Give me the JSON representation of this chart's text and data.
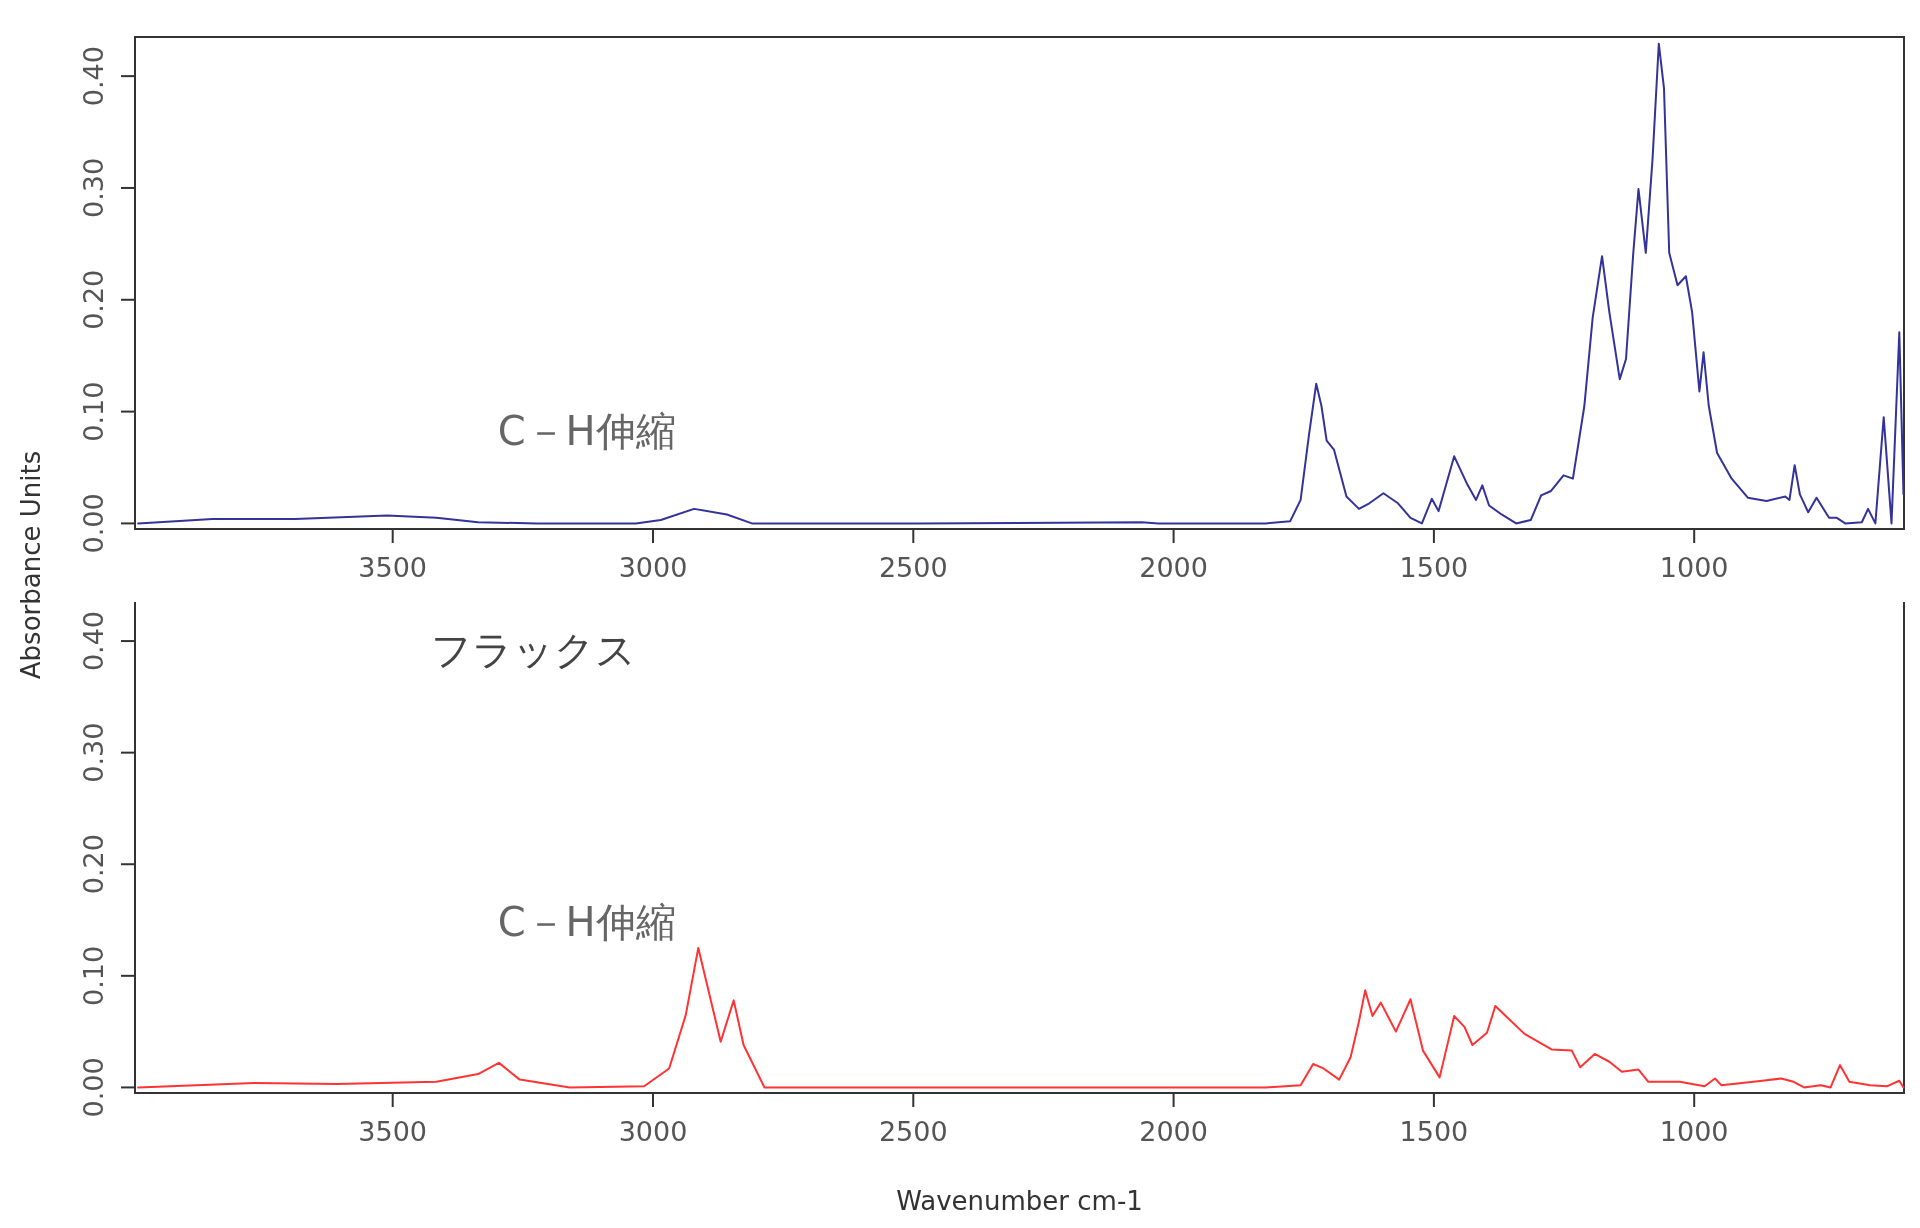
{
  "chart_data": [
    {
      "type": "line",
      "ylabel": "Absorbance Units",
      "annotations": [
        "C－H伸縮"
      ],
      "xlim": [
        3995,
        597
      ],
      "xticks": [
        3500,
        3000,
        2500,
        2000,
        1500,
        1000
      ],
      "ylim": [
        -0.005,
        0.435
      ],
      "yticks": [
        {
          "value": 0,
          "label": "0.00"
        },
        {
          "value": 0.1,
          "label": "0.10"
        },
        {
          "value": 0.2,
          "label": "0.20"
        },
        {
          "value": 0.3,
          "label": "0.30"
        },
        {
          "value": 0.4,
          "label": "0.40"
        }
      ],
      "series": [
        {
          "color": "#33339a",
          "x": [
            3989,
            3846,
            3687,
            3511,
            3416,
            3336,
            3224,
            3033,
            2985,
            2921,
            2858,
            2810,
            2491,
            2061,
            2029,
            1823,
            1776,
            1756,
            1740,
            1726,
            1716,
            1706,
            1692,
            1668,
            1644,
            1624,
            1597,
            1569,
            1545,
            1523,
            1504,
            1491,
            1461,
            1437,
            1419,
            1407,
            1394,
            1370,
            1342,
            1314,
            1294,
            1275,
            1251,
            1233,
            1211,
            1195,
            1177,
            1163,
            1143,
            1131,
            1117,
            1107,
            1093,
            1080,
            1068,
            1058,
            1048,
            1032,
            1016,
            1004,
            990,
            982,
            972,
            956,
            928,
            897,
            861,
            825,
            817,
            807,
            797,
            781,
            765,
            741,
            726,
            710,
            678,
            666,
            652,
            636,
            621,
            606,
            598
          ],
          "values": [
            0.0,
            0.004,
            0.004,
            0.007,
            0.005,
            0.001,
            0.0,
            0.0,
            0.003,
            0.013,
            0.008,
            0.0,
            0.0,
            0.001,
            0.0,
            0.0,
            0.002,
            0.021,
            0.079,
            0.125,
            0.105,
            0.074,
            0.066,
            0.024,
            0.013,
            0.018,
            0.027,
            0.018,
            0.005,
            0.0,
            0.022,
            0.011,
            0.06,
            0.036,
            0.021,
            0.034,
            0.016,
            0.008,
            0.0,
            0.003,
            0.025,
            0.029,
            0.043,
            0.04,
            0.105,
            0.184,
            0.239,
            0.189,
            0.129,
            0.147,
            0.242,
            0.299,
            0.242,
            0.326,
            0.429,
            0.389,
            0.242,
            0.213,
            0.221,
            0.189,
            0.118,
            0.153,
            0.105,
            0.063,
            0.04,
            0.023,
            0.02,
            0.024,
            0.021,
            0.052,
            0.026,
            0.01,
            0.023,
            0.005,
            0.005,
            0.0,
            0.001,
            0.013,
            0.0,
            0.095,
            0.0,
            0.171,
            0.026
          ]
        }
      ]
    },
    {
      "type": "line",
      "title": "フラックス",
      "xlabel": "Wavenumber cm-1",
      "annotations": [
        "C－H伸縮"
      ],
      "xlim": [
        3995,
        597
      ],
      "xticks": [
        3500,
        3000,
        2500,
        2000,
        1500,
        1000
      ],
      "ylim": [
        -0.005,
        0.435
      ],
      "yticks": [
        {
          "value": 0,
          "label": "0.00"
        },
        {
          "value": 0.1,
          "label": "0.10"
        },
        {
          "value": 0.2,
          "label": "0.20"
        },
        {
          "value": 0.3,
          "label": "0.30"
        },
        {
          "value": 0.4,
          "label": "0.40"
        }
      ],
      "series": [
        {
          "color": "#ff3333",
          "x": [
            3989,
            3766,
            3607,
            3416,
            3336,
            3296,
            3256,
            3160,
            3017,
            2969,
            2937,
            2913,
            2893,
            2870,
            2845,
            2826,
            2786,
            2029,
            1823,
            1756,
            1732,
            1712,
            1682,
            1660,
            1644,
            1632,
            1618,
            1602,
            1573,
            1545,
            1521,
            1489,
            1461,
            1441,
            1426,
            1398,
            1382,
            1362,
            1326,
            1274,
            1235,
            1219,
            1191,
            1163,
            1139,
            1107,
            1088,
            1028,
            980,
            960,
            948,
            869,
            833,
            809,
            789,
            757,
            738,
            720,
            702,
            662,
            630,
            606,
            598
          ],
          "values": [
            0.0,
            0.004,
            0.003,
            0.005,
            0.012,
            0.022,
            0.007,
            0.0,
            0.001,
            0.017,
            0.065,
            0.125,
            0.086,
            0.041,
            0.078,
            0.038,
            0.0,
            0.0,
            0.0,
            0.002,
            0.021,
            0.017,
            0.007,
            0.027,
            0.059,
            0.087,
            0.064,
            0.076,
            0.05,
            0.079,
            0.033,
            0.009,
            0.064,
            0.054,
            0.038,
            0.049,
            0.073,
            0.064,
            0.048,
            0.034,
            0.033,
            0.018,
            0.03,
            0.023,
            0.014,
            0.016,
            0.005,
            0.005,
            0.001,
            0.008,
            0.002,
            0.006,
            0.008,
            0.005,
            0.0,
            0.002,
            0.0,
            0.02,
            0.005,
            0.002,
            0.001,
            0.006,
            0.0
          ]
        }
      ]
    }
  ]
}
